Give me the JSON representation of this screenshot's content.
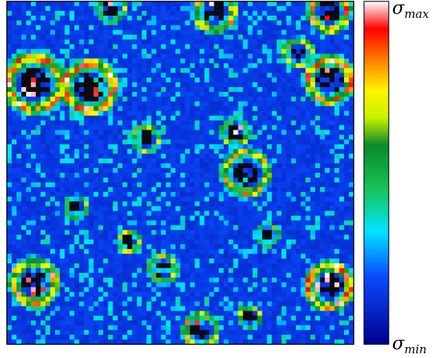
{
  "chart_data": {
    "type": "heatmap",
    "description_of_field": "",
    "grid": {
      "cols": 72,
      "rows": 72
    },
    "value_range": [
      0,
      1
    ],
    "colormap": {
      "name": "jet-like",
      "stops": [
        {
          "v": 0.0,
          "color": "#00008f"
        },
        {
          "v": 0.2,
          "color": "#0a4cff"
        },
        {
          "v": 0.33,
          "color": "#00e5ff"
        },
        {
          "v": 0.45,
          "color": "#17c35a"
        },
        {
          "v": 0.58,
          "color": "#0a8a2a"
        },
        {
          "v": 0.66,
          "color": "#c8f000"
        },
        {
          "v": 0.74,
          "color": "#fff500"
        },
        {
          "v": 0.82,
          "color": "#ff8a00"
        },
        {
          "v": 0.92,
          "color": "#ff0000"
        },
        {
          "v": 1.0,
          "color": "#ffffff"
        }
      ]
    },
    "hotspots": [
      {
        "cx": 0.08,
        "cy": 0.24,
        "r": 0.1,
        "peak": 0.95
      },
      {
        "cx": 0.24,
        "cy": 0.25,
        "r": 0.09,
        "peak": 0.95
      },
      {
        "cx": 0.6,
        "cy": 0.03,
        "r": 0.07,
        "peak": 0.85
      },
      {
        "cx": 0.93,
        "cy": 0.03,
        "r": 0.07,
        "peak": 0.9
      },
      {
        "cx": 0.93,
        "cy": 0.23,
        "r": 0.08,
        "peak": 0.95
      },
      {
        "cx": 0.08,
        "cy": 0.82,
        "r": 0.08,
        "peak": 0.95
      },
      {
        "cx": 0.93,
        "cy": 0.83,
        "r": 0.08,
        "peak": 0.95
      },
      {
        "cx": 0.69,
        "cy": 0.5,
        "r": 0.08,
        "peak": 0.8
      },
      {
        "cx": 0.56,
        "cy": 0.96,
        "r": 0.06,
        "peak": 0.8
      },
      {
        "cx": 0.45,
        "cy": 0.78,
        "r": 0.05,
        "peak": 0.75
      },
      {
        "cx": 0.4,
        "cy": 0.4,
        "r": 0.05,
        "peak": 0.7
      },
      {
        "cx": 0.66,
        "cy": 0.38,
        "r": 0.05,
        "peak": 0.7
      },
      {
        "cx": 0.3,
        "cy": 0.02,
        "r": 0.05,
        "peak": 0.75
      },
      {
        "cx": 0.84,
        "cy": 0.15,
        "r": 0.05,
        "peak": 0.75
      },
      {
        "cx": 0.35,
        "cy": 0.7,
        "r": 0.04,
        "peak": 0.7
      },
      {
        "cx": 0.75,
        "cy": 0.68,
        "r": 0.04,
        "peak": 0.7
      },
      {
        "cx": 0.7,
        "cy": 0.92,
        "r": 0.04,
        "peak": 0.7
      },
      {
        "cx": 0.2,
        "cy": 0.6,
        "r": 0.04,
        "peak": 0.65
      }
    ],
    "colorbar": {
      "max_label": {
        "symbol": "σ",
        "sub": "max"
      },
      "min_label": {
        "symbol": "σ",
        "sub": "min"
      }
    }
  }
}
